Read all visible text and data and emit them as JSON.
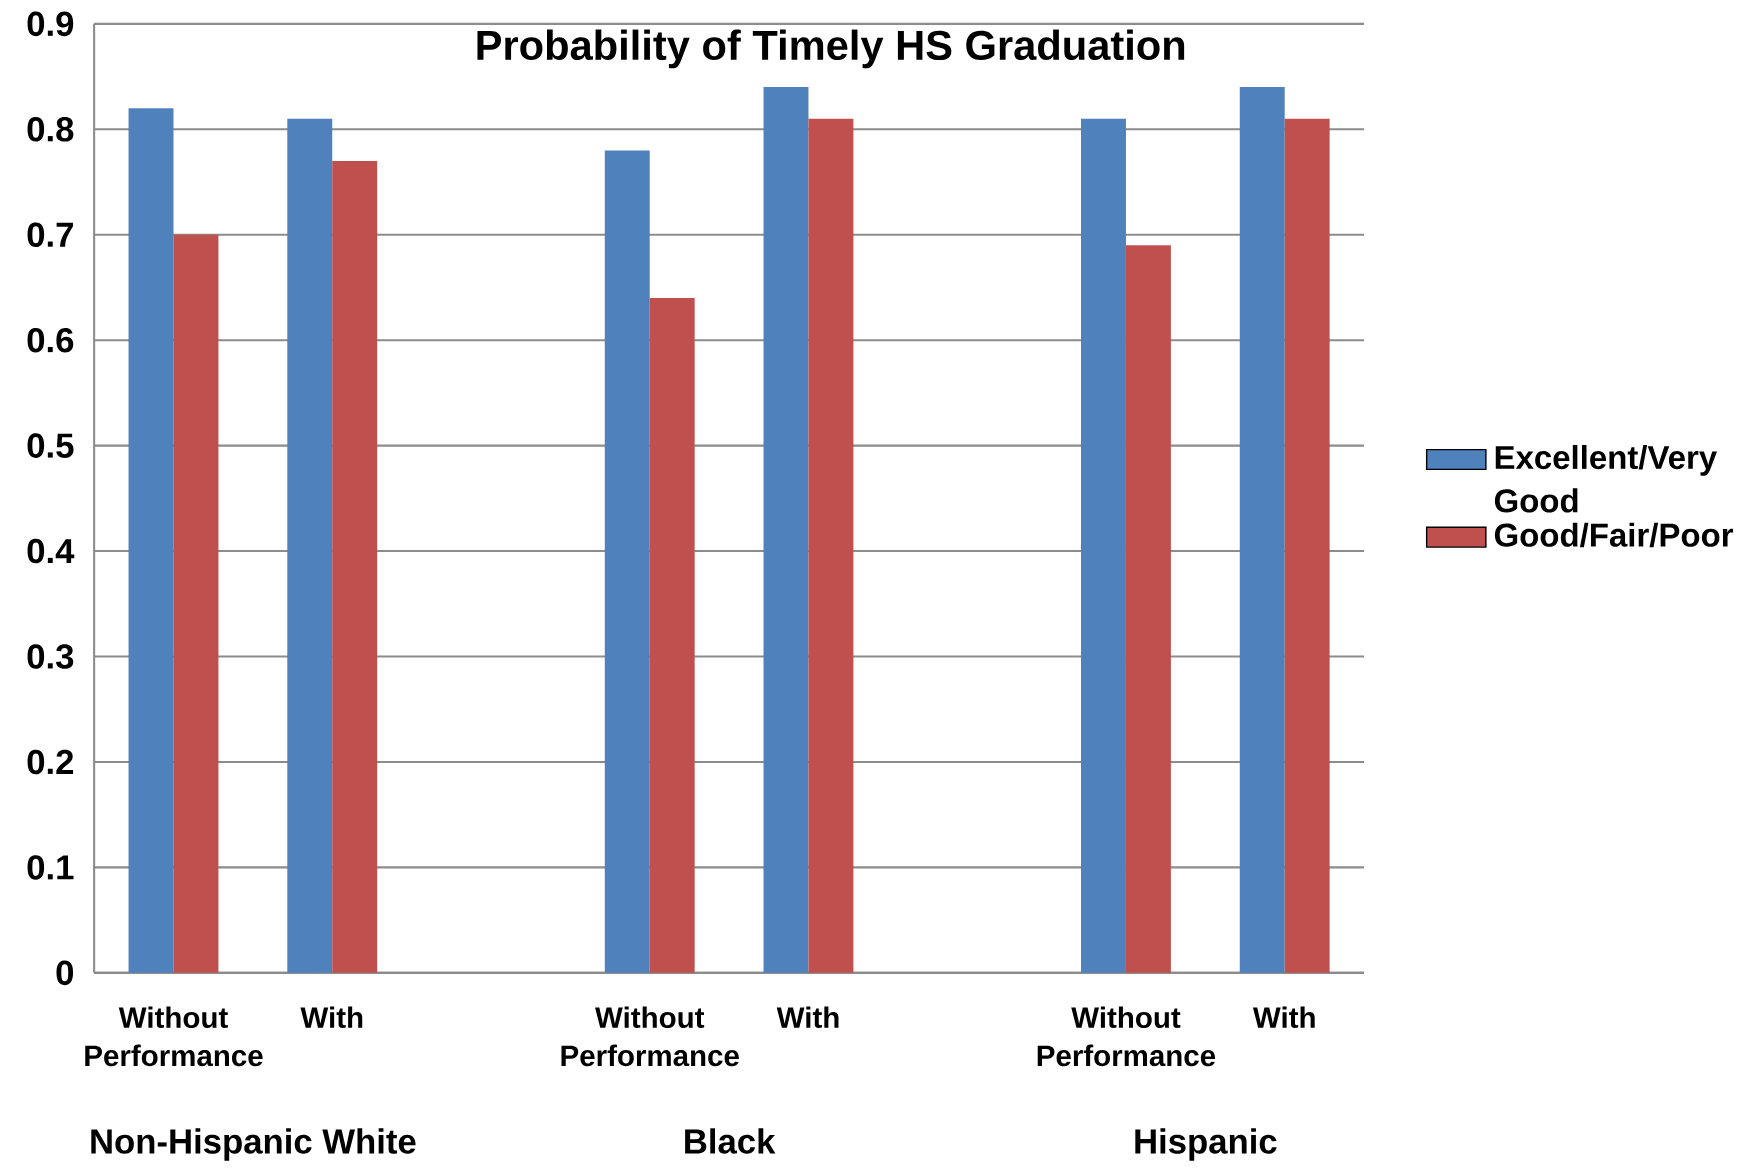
{
  "chart_data": {
    "type": "bar",
    "title": "Probability of Timely HS Graduation",
    "categories": [
      "Without Performance",
      "With",
      null,
      "Without Performance",
      "With",
      null,
      "Without Performance",
      "With"
    ],
    "series": [
      {
        "name": "Excellent/Very Good",
        "color": "#4f81bd",
        "values": [
          0.82,
          0.81,
          null,
          0.78,
          0.84,
          null,
          0.81,
          0.84
        ]
      },
      {
        "name": "Good/Fair/Poor",
        "color": "#c0504d",
        "values": [
          0.7,
          0.77,
          null,
          0.64,
          0.81,
          null,
          0.69,
          0.81
        ]
      }
    ],
    "ylim": [
      0,
      0.9
    ],
    "yticks": [
      0,
      0.1,
      0.2,
      0.3,
      0.4,
      0.5,
      0.6,
      0.7,
      0.8,
      0.9
    ],
    "grid": "y",
    "legend": "right",
    "annotations": [
      "Non-Hispanic White",
      "Black",
      "Hispanic"
    ]
  }
}
